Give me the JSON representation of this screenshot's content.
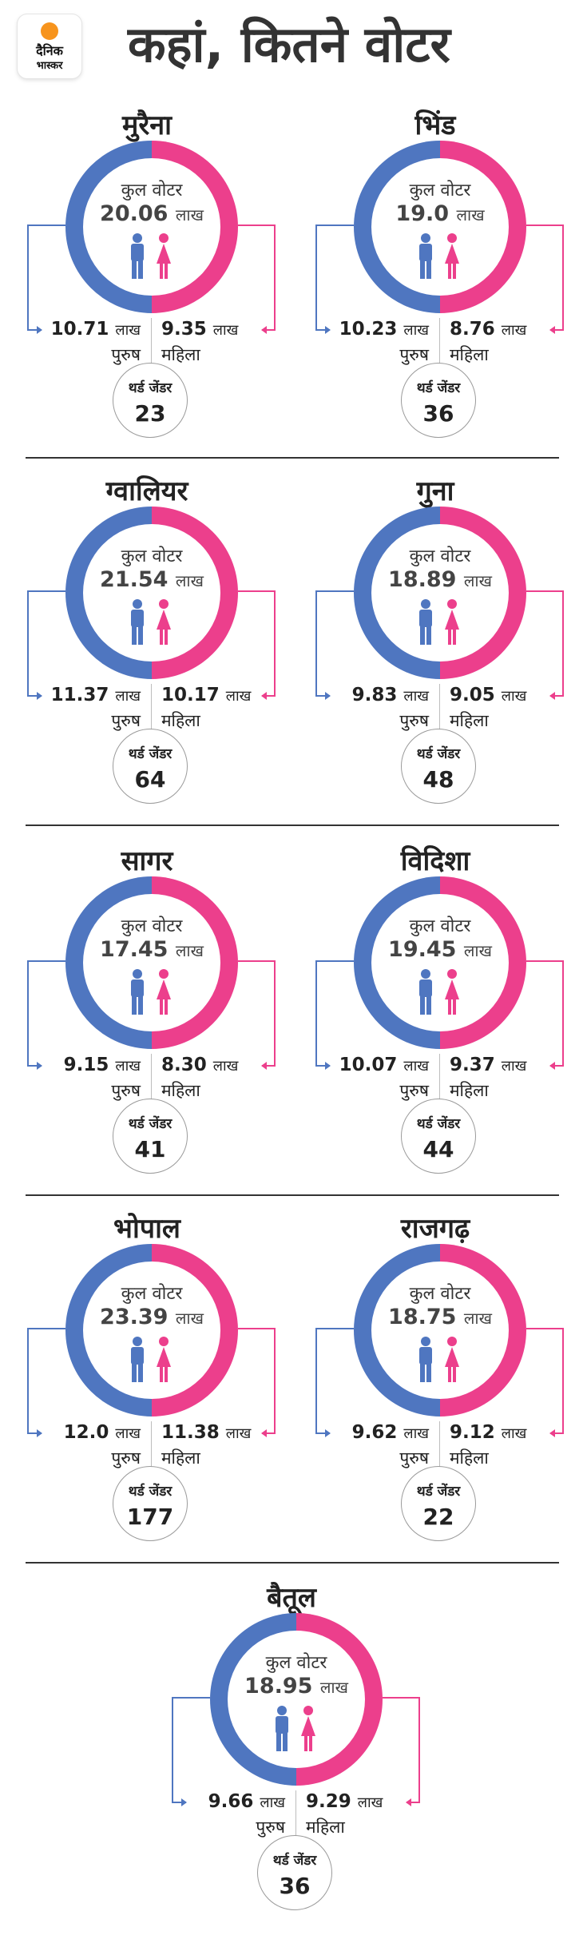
{
  "header": {
    "title": "कहां, कितने वोटर",
    "logo_line1": "दैनिक",
    "logo_line2": "भास्कर"
  },
  "labels": {
    "total": "कुल वोटर",
    "unit": "लाख",
    "male": "पुरुष",
    "female": "महिला",
    "third_gender": "थर्ड जेंडर"
  },
  "colors": {
    "male": "#4f76c0",
    "female": "#ec3f8c"
  },
  "districts": [
    {
      "name": "मुरैना",
      "total": "20.06",
      "male": "10.71",
      "female": "9.35",
      "third_gender": "23"
    },
    {
      "name": "भिंड",
      "total": "19.0",
      "male": "10.23",
      "female": "8.76",
      "third_gender": "36"
    },
    {
      "name": "ग्वालियर",
      "total": "21.54",
      "male": "11.37",
      "female": "10.17",
      "third_gender": "64"
    },
    {
      "name": "गुना",
      "total": "18.89",
      "male": "9.83",
      "female": "9.05",
      "third_gender": "48"
    },
    {
      "name": "सागर",
      "total": "17.45",
      "male": "9.15",
      "female": "8.30",
      "third_gender": "41"
    },
    {
      "name": "विदिशा",
      "total": "19.45",
      "male": "10.07",
      "female": "9.37",
      "third_gender": "44"
    },
    {
      "name": "भोपाल",
      "total": "23.39",
      "male": "12.0",
      "female": "11.38",
      "third_gender": "177"
    },
    {
      "name": "राजगढ़",
      "total": "18.75",
      "male": "9.62",
      "female": "9.12",
      "third_gender": "22"
    },
    {
      "name": "बैतूल",
      "total": "18.95",
      "male": "9.66",
      "female": "9.29",
      "third_gender": "36"
    }
  ]
}
